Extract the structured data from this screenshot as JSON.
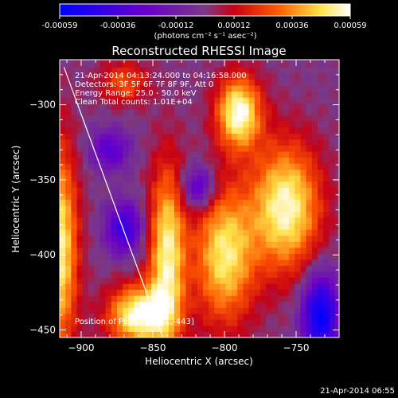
{
  "chart_data": {
    "type": "heatmap",
    "title": "Reconstructed RHESSI Image",
    "colorbar": {
      "unit_label": "(photons cm⁻² s⁻¹ asec⁻²)",
      "ticks": [
        "-0.00059",
        "-0.00036",
        "-0.00012",
        "0.00012",
        "0.00036",
        "0.00059"
      ],
      "range": [
        -0.00059,
        0.00059
      ],
      "colors": [
        "#0000ff",
        "#6a00c8",
        "#7a3a86",
        "#c80014",
        "#ff5a00",
        "#ffe44a",
        "#ffffff"
      ]
    },
    "annotations": [
      "21-Apr-2014 04:13:24.000 to 04:16:58.000",
      "Detectors: 3F 5F 6F 7F 8F 9F, Att 0",
      "Energy Range: 25.0 - 50.0 keV",
      "Clean     Total counts: 1.01E+04"
    ],
    "peak_label": "Position of Peak = [-851,-443]",
    "xlabel": "Heliocentric X (arcsec)",
    "ylabel": "Heliocentric Y (arcsec)",
    "xlim": [
      -915,
      -720
    ],
    "ylim": [
      -455,
      -270
    ],
    "xticks": [
      {
        "value": -900,
        "label": "−900"
      },
      {
        "value": -850,
        "label": "−850"
      },
      {
        "value": -800,
        "label": "−800"
      },
      {
        "value": -750,
        "label": "−750"
      }
    ],
    "yticks": [
      {
        "value": -300,
        "label": "−300"
      },
      {
        "value": -350,
        "label": "−350"
      },
      {
        "value": -400,
        "label": "−400"
      },
      {
        "value": -450,
        "label": "−450"
      }
    ],
    "limb_line": {
      "x": [
        -912,
        -843
      ],
      "y": [
        -275,
        -455
      ]
    },
    "sources": [
      {
        "x": -790,
        "y": -305,
        "sx": 11,
        "sy": 17,
        "amp": 1.0
      },
      {
        "x": -757,
        "y": -368,
        "sx": 17,
        "sy": 30,
        "amp": 0.95
      },
      {
        "x": -800,
        "y": -400,
        "sx": 15,
        "sy": 32,
        "amp": 0.85
      },
      {
        "x": -840,
        "y": -400,
        "sx": 9,
        "sy": 42,
        "amp": 0.9
      },
      {
        "x": -860,
        "y": -440,
        "sx": 15,
        "sy": 14,
        "amp": 1.0
      },
      {
        "x": -915,
        "y": -395,
        "sx": 9,
        "sy": 48,
        "amp": 0.9
      },
      {
        "x": -870,
        "y": -285,
        "sx": 12,
        "sy": 10,
        "amp": 0.45
      },
      {
        "x": -733,
        "y": -440,
        "sx": 9,
        "sy": 20,
        "amp": -1.0
      },
      {
        "x": -870,
        "y": -382,
        "sx": 9,
        "sy": 12,
        "amp": -0.7
      },
      {
        "x": -818,
        "y": -355,
        "sx": 8,
        "sy": 10,
        "amp": -0.6
      },
      {
        "x": -880,
        "y": -330,
        "sx": 10,
        "sy": 10,
        "amp": -0.5
      }
    ],
    "pixel_size_arcsec": 4
  },
  "footer": {
    "timestamp": "21-Apr-2014 06:55"
  }
}
